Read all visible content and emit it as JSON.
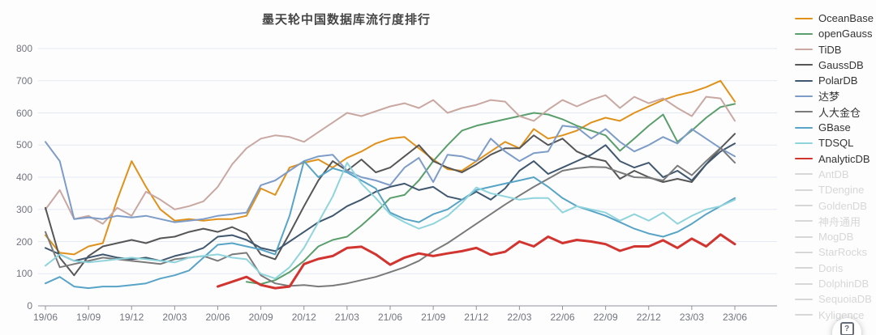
{
  "ui": {
    "help_icon": "?"
  },
  "chart_data": {
    "type": "line",
    "title": "墨天轮中国数据库流行度排行",
    "xlabel": "",
    "ylabel": "",
    "x_interval": "monthly",
    "n_points": 49,
    "x_range": [
      "19/06",
      "23/06"
    ],
    "x_ticks": [
      "19/06",
      "19/09",
      "19/12",
      "20/03",
      "20/06",
      "20/09",
      "20/12",
      "21/03",
      "21/06",
      "21/09",
      "21/12",
      "22/03",
      "22/06",
      "22/09",
      "22/12",
      "23/03",
      "23/06"
    ],
    "y_ticks": [
      0,
      100,
      200,
      300,
      400,
      500,
      600,
      700,
      800
    ],
    "ylim": [
      0,
      800
    ],
    "grid": true,
    "legend_position": "right",
    "colors": {
      "background": "#FDFDFD",
      "grid": "#E4EAF4",
      "axis": "#8F949E",
      "axis_label": "#70757E",
      "title": "#454545",
      "legend_text": "#333333",
      "legend_inactive": "#D7D7D7"
    },
    "series": [
      {
        "name": "OceanBase",
        "color": "#E0911A",
        "width": 2,
        "values": [
          220,
          165,
          160,
          185,
          195,
          330,
          450,
          370,
          300,
          265,
          270,
          265,
          270,
          270,
          280,
          365,
          345,
          430,
          445,
          455,
          430,
          460,
          480,
          505,
          520,
          525,
          490,
          455,
          425,
          420,
          450,
          480,
          510,
          490,
          550,
          520,
          530,
          545,
          570,
          585,
          575,
          600,
          620,
          640,
          655,
          665,
          680,
          700,
          635
        ]
      },
      {
        "name": "openGauss",
        "color": "#5A9E6C",
        "width": 2,
        "values": [
          null,
          null,
          null,
          null,
          null,
          null,
          null,
          null,
          null,
          null,
          null,
          null,
          null,
          null,
          75,
          68,
          80,
          105,
          140,
          185,
          205,
          215,
          250,
          290,
          335,
          345,
          390,
          450,
          500,
          545,
          560,
          570,
          580,
          590,
          600,
          595,
          580,
          560,
          545,
          530,
          482,
          520,
          560,
          595,
          510,
          545,
          585,
          618,
          628
        ]
      },
      {
        "name": "TiDB",
        "color": "#C9A8A2",
        "width": 2,
        "values": [
          300,
          360,
          270,
          280,
          255,
          305,
          280,
          355,
          330,
          300,
          310,
          325,
          370,
          440,
          490,
          520,
          530,
          525,
          510,
          540,
          570,
          600,
          590,
          605,
          620,
          630,
          615,
          640,
          600,
          615,
          625,
          640,
          635,
          590,
          575,
          610,
          640,
          620,
          640,
          655,
          615,
          650,
          630,
          645,
          615,
          590,
          650,
          645,
          575
        ]
      },
      {
        "name": "GaussDB",
        "color": "#565656",
        "width": 2,
        "values": [
          305,
          150,
          95,
          155,
          185,
          195,
          205,
          195,
          210,
          215,
          230,
          240,
          230,
          245,
          225,
          160,
          145,
          225,
          310,
          390,
          450,
          420,
          455,
          415,
          430,
          465,
          500,
          450,
          430,
          415,
          440,
          470,
          490,
          490,
          530,
          500,
          520,
          480,
          460,
          450,
          395,
          420,
          400,
          385,
          395,
          385,
          440,
          490,
          535
        ]
      },
      {
        "name": "PolarDB",
        "color": "#40586F",
        "width": 2,
        "values": [
          180,
          160,
          140,
          150,
          160,
          150,
          145,
          150,
          140,
          155,
          165,
          180,
          215,
          220,
          205,
          180,
          170,
          200,
          230,
          260,
          280,
          310,
          330,
          355,
          370,
          380,
          360,
          370,
          340,
          330,
          355,
          330,
          365,
          420,
          450,
          410,
          430,
          450,
          470,
          500,
          450,
          430,
          445,
          400,
          420,
          390,
          440,
          480,
          505
        ]
      },
      {
        "name": "达梦",
        "color": "#7D9CC8",
        "width": 2,
        "values": [
          510,
          450,
          270,
          275,
          270,
          280,
          275,
          280,
          270,
          260,
          265,
          270,
          280,
          285,
          290,
          375,
          390,
          420,
          450,
          465,
          470,
          420,
          400,
          390,
          375,
          430,
          460,
          385,
          470,
          465,
          450,
          520,
          480,
          450,
          475,
          480,
          560,
          555,
          520,
          550,
          510,
          480,
          500,
          525,
          505,
          550,
          520,
          490,
          465
        ]
      },
      {
        "name": "人大金仓",
        "color": "#7A7A7A",
        "width": 2,
        "values": [
          230,
          120,
          130,
          140,
          150,
          145,
          140,
          135,
          130,
          145,
          150,
          155,
          140,
          160,
          165,
          95,
          70,
          62,
          65,
          60,
          63,
          70,
          80,
          90,
          105,
          120,
          140,
          170,
          195,
          225,
          255,
          285,
          315,
          343,
          370,
          395,
          420,
          428,
          432,
          431,
          415,
          400,
          398,
          390,
          436,
          406,
          450,
          491,
          445
        ]
      },
      {
        "name": "GBase",
        "color": "#58A4C6",
        "width": 2,
        "values": [
          70,
          90,
          60,
          55,
          60,
          60,
          65,
          70,
          85,
          95,
          110,
          150,
          190,
          195,
          185,
          175,
          160,
          280,
          450,
          400,
          428,
          415,
          390,
          365,
          290,
          270,
          260,
          285,
          300,
          330,
          360,
          370,
          380,
          390,
          400,
          370,
          335,
          310,
          295,
          280,
          260,
          240,
          225,
          215,
          230,
          255,
          285,
          310,
          335
        ]
      },
      {
        "name": "TDSQL",
        "color": "#90D4DC",
        "width": 2,
        "values": [
          125,
          160,
          140,
          135,
          140,
          145,
          150,
          145,
          140,
          135,
          150,
          155,
          160,
          150,
          145,
          100,
          85,
          120,
          180,
          260,
          340,
          445,
          380,
          335,
          285,
          260,
          240,
          255,
          280,
          320,
          368,
          350,
          340,
          330,
          335,
          335,
          290,
          310,
          300,
          290,
          265,
          285,
          265,
          290,
          255,
          280,
          300,
          310,
          330
        ]
      },
      {
        "name": "AnalyticDB",
        "color": "#D23430",
        "width": 3,
        "values": [
          null,
          null,
          null,
          null,
          null,
          null,
          null,
          null,
          null,
          null,
          null,
          null,
          60,
          75,
          90,
          65,
          55,
          60,
          130,
          146,
          155,
          180,
          184,
          160,
          128,
          150,
          163,
          155,
          163,
          170,
          180,
          159,
          168,
          200,
          185,
          215,
          195,
          205,
          200,
          192,
          171,
          185,
          185,
          204,
          180,
          209,
          185,
          222,
          192
        ]
      }
    ],
    "legend": [
      {
        "label": "OceanBase",
        "selected": true,
        "color": "#E0911A"
      },
      {
        "label": "openGauss",
        "selected": true,
        "color": "#5A9E6C"
      },
      {
        "label": "TiDB",
        "selected": true,
        "color": "#C9A8A2"
      },
      {
        "label": "GaussDB",
        "selected": true,
        "color": "#565656"
      },
      {
        "label": "PolarDB",
        "selected": true,
        "color": "#40586F"
      },
      {
        "label": "达梦",
        "selected": true,
        "color": "#7D9CC8"
      },
      {
        "label": "人大金仓",
        "selected": true,
        "color": "#7A7A7A"
      },
      {
        "label": "GBase",
        "selected": true,
        "color": "#58A4C6"
      },
      {
        "label": "TDSQL",
        "selected": true,
        "color": "#90D4DC"
      },
      {
        "label": "AnalyticDB",
        "selected": true,
        "color": "#D23430"
      },
      {
        "label": "AntDB",
        "selected": false
      },
      {
        "label": "TDengine",
        "selected": false
      },
      {
        "label": "GoldenDB",
        "selected": false
      },
      {
        "label": "神舟通用",
        "selected": false
      },
      {
        "label": "MogDB",
        "selected": false
      },
      {
        "label": "StarRocks",
        "selected": false
      },
      {
        "label": "Doris",
        "selected": false
      },
      {
        "label": "DolphinDB",
        "selected": false
      },
      {
        "label": "SequoiaDB",
        "selected": false
      },
      {
        "label": "Kyligence",
        "selected": false
      }
    ]
  }
}
